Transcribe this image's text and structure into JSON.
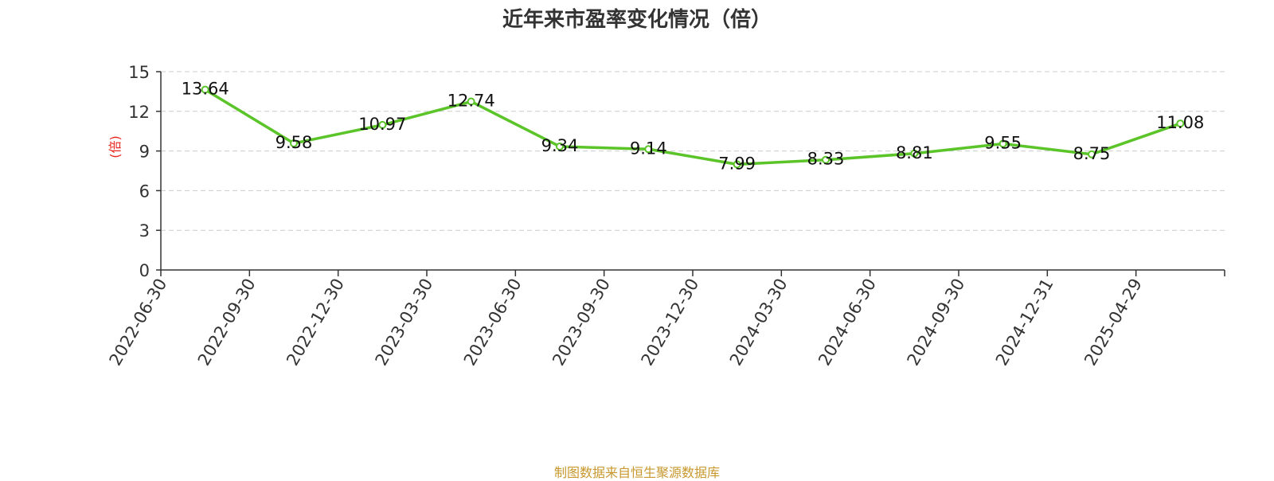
{
  "chart_data": {
    "type": "line",
    "title": "近年来市盈率变化情况（倍）",
    "ylabel": "(倍)",
    "xlabel": "",
    "ylim": [
      0,
      15
    ],
    "yticks": [
      0,
      3,
      6,
      9,
      12,
      15
    ],
    "grid": true,
    "categories": [
      "2022-06-30",
      "2022-09-30",
      "2022-12-30",
      "2023-03-30",
      "2023-06-30",
      "2023-09-30",
      "2023-12-30",
      "2024-03-30",
      "2024-06-30",
      "2024-09-30",
      "2024-12-31",
      "2025-04-29"
    ],
    "series": [
      {
        "values": [
          13.64,
          9.58,
          10.97,
          12.74,
          9.34,
          9.14,
          7.99,
          8.33,
          8.81,
          9.55,
          8.75,
          11.08
        ]
      }
    ],
    "colors": {
      "line": "#5bc429",
      "ylabel": "#e8251c",
      "grid": "#cccccc",
      "axis": "#333333"
    }
  },
  "source_note": "制图数据来自恒生聚源数据库"
}
